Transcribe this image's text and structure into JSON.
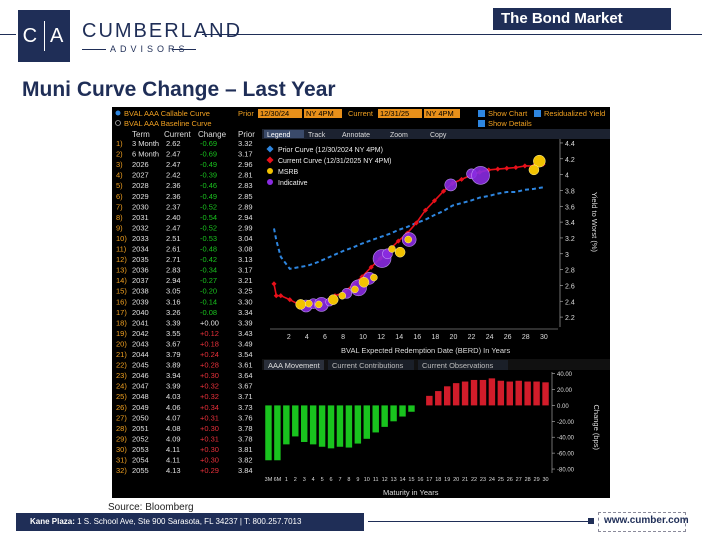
{
  "header": {
    "logo_letters": "C|A",
    "brand_name": "CUMBERLAND",
    "brand_sub": "ADVISORS",
    "banner": "The Bond Market",
    "title": "Muni Curve Change – Last Year"
  },
  "terminal": {
    "toolbar": {
      "row1_left": "BVAL AAA Callable Curve",
      "row2_left": "BVAL AAA Baseline Curve",
      "prior_label": "Prior",
      "prior_date": "12/30/24",
      "prior_time": "NY 4PM",
      "current_label": "Current",
      "current_date": "12/31/25",
      "current_time": "NY 4PM",
      "show_chart": "Show Chart",
      "residualized": "Residualized Yield",
      "show_details": "Show Details"
    },
    "table_headers": [
      "Term",
      "Current",
      "Change",
      "Prior"
    ],
    "tabs_top": [
      "Legend",
      "Track",
      "Annotate",
      "Zoom",
      "Copy"
    ],
    "tabs_bottom": [
      "AAA Movement",
      "Current Contributions",
      "Current Observations"
    ],
    "rows": [
      {
        "n": "1)",
        "term": "3 Month",
        "current": "2.62",
        "change": "-0.69",
        "prior": "3.32"
      },
      {
        "n": "2)",
        "term": "6 Month",
        "current": "2.47",
        "change": "-0.69",
        "prior": "3.17"
      },
      {
        "n": "3)",
        "term": "2026",
        "current": "2.47",
        "change": "-0.49",
        "prior": "2.96"
      },
      {
        "n": "4)",
        "term": "2027",
        "current": "2.42",
        "change": "-0.39",
        "prior": "2.81"
      },
      {
        "n": "5)",
        "term": "2028",
        "current": "2.36",
        "change": "-0.46",
        "prior": "2.83"
      },
      {
        "n": "6)",
        "term": "2029",
        "current": "2.36",
        "change": "-0.49",
        "prior": "2.85"
      },
      {
        "n": "7)",
        "term": "2030",
        "current": "2.37",
        "change": "-0.52",
        "prior": "2.89"
      },
      {
        "n": "8)",
        "term": "2031",
        "current": "2.40",
        "change": "-0.54",
        "prior": "2.94"
      },
      {
        "n": "9)",
        "term": "2032",
        "current": "2.47",
        "change": "-0.52",
        "prior": "2.99"
      },
      {
        "n": "10)",
        "term": "2033",
        "current": "2.51",
        "change": "-0.53",
        "prior": "3.04"
      },
      {
        "n": "11)",
        "term": "2034",
        "current": "2.61",
        "change": "-0.48",
        "prior": "3.08"
      },
      {
        "n": "12)",
        "term": "2035",
        "current": "2.71",
        "change": "-0.42",
        "prior": "3.13"
      },
      {
        "n": "13)",
        "term": "2036",
        "current": "2.83",
        "change": "-0.34",
        "prior": "3.17"
      },
      {
        "n": "14)",
        "term": "2037",
        "current": "2.94",
        "change": "-0.27",
        "prior": "3.21"
      },
      {
        "n": "15)",
        "term": "2038",
        "current": "3.05",
        "change": "-0.20",
        "prior": "3.25"
      },
      {
        "n": "16)",
        "term": "2039",
        "current": "3.16",
        "change": "-0.14",
        "prior": "3.30"
      },
      {
        "n": "17)",
        "term": "2040",
        "current": "3.26",
        "change": "-0.08",
        "prior": "3.34"
      },
      {
        "n": "18)",
        "term": "2041",
        "current": "3.39",
        "change": "+0.00",
        "prior": "3.39"
      },
      {
        "n": "19)",
        "term": "2042",
        "current": "3.55",
        "change": "+0.12",
        "prior": "3.43"
      },
      {
        "n": "20)",
        "term": "2043",
        "current": "3.67",
        "change": "+0.18",
        "prior": "3.49"
      },
      {
        "n": "21)",
        "term": "2044",
        "current": "3.79",
        "change": "+0.24",
        "prior": "3.54"
      },
      {
        "n": "22)",
        "term": "2045",
        "current": "3.89",
        "change": "+0.28",
        "prior": "3.61"
      },
      {
        "n": "23)",
        "term": "2046",
        "current": "3.94",
        "change": "+0.30",
        "prior": "3.64"
      },
      {
        "n": "24)",
        "term": "2047",
        "current": "3.99",
        "change": "+0.32",
        "prior": "3.67"
      },
      {
        "n": "25)",
        "term": "2048",
        "current": "4.03",
        "change": "+0.32",
        "prior": "3.71"
      },
      {
        "n": "26)",
        "term": "2049",
        "current": "4.06",
        "change": "+0.34",
        "prior": "3.73"
      },
      {
        "n": "27)",
        "term": "2050",
        "current": "4.07",
        "change": "+0.31",
        "prior": "3.76"
      },
      {
        "n": "28)",
        "term": "2051",
        "current": "4.08",
        "change": "+0.30",
        "prior": "3.78"
      },
      {
        "n": "29)",
        "term": "2052",
        "current": "4.09",
        "change": "+0.31",
        "prior": "3.78"
      },
      {
        "n": "30)",
        "term": "2053",
        "current": "4.11",
        "change": "+0.30",
        "prior": "3.81"
      },
      {
        "n": "31)",
        "term": "2054",
        "current": "4.11",
        "change": "+0.30",
        "prior": "3.82"
      },
      {
        "n": "32)",
        "term": "2055",
        "current": "4.13",
        "change": "+0.29",
        "prior": "3.84"
      }
    ]
  },
  "chart_data": [
    {
      "type": "line",
      "legend": [
        "Prior Curve (12/30/2024 NY 4PM)",
        "Current Curve (12/31/2025 NY 4PM)",
        "MSRB",
        "Indicative"
      ],
      "xlabel": "BVAL Expected Redemption Date (BERD) In Years",
      "ylabel": "Yield to Worst (%)",
      "x_ticks": [
        2,
        4,
        6,
        8,
        10,
        12,
        14,
        16,
        18,
        20,
        22,
        24,
        26,
        28,
        30
      ],
      "y_ticks": [
        2.2,
        2.4,
        2.6,
        2.8,
        3,
        3.2,
        3.4,
        3.6,
        3.8,
        4,
        4.2,
        4.4
      ],
      "xlim": [
        0.25,
        31
      ],
      "ylim": [
        2.1,
        4.45
      ],
      "x": [
        0.25,
        0.5,
        1,
        2,
        3,
        4,
        5,
        6,
        7,
        8,
        9,
        10,
        11,
        12,
        13,
        14,
        15,
        16,
        17,
        18,
        19,
        20,
        21,
        22,
        23,
        24,
        25,
        26,
        27,
        28,
        29,
        30
      ],
      "series": [
        {
          "name": "Prior Curve (12/30/2024 NY 4PM)",
          "color": "#2e86e0",
          "style": "dashed",
          "values": [
            3.32,
            3.17,
            2.96,
            2.81,
            2.83,
            2.85,
            2.89,
            2.94,
            2.99,
            3.04,
            3.08,
            3.13,
            3.17,
            3.21,
            3.25,
            3.3,
            3.34,
            3.39,
            3.43,
            3.49,
            3.54,
            3.61,
            3.64,
            3.67,
            3.71,
            3.73,
            3.76,
            3.78,
            3.78,
            3.81,
            3.82,
            3.84
          ]
        },
        {
          "name": "Current Curve (12/31/2025 NY 4PM)",
          "color": "#e8101a",
          "style": "solid",
          "values": [
            2.62,
            2.47,
            2.47,
            2.42,
            2.36,
            2.36,
            2.37,
            2.4,
            2.47,
            2.51,
            2.61,
            2.71,
            2.83,
            2.94,
            3.05,
            3.16,
            3.26,
            3.39,
            3.55,
            3.67,
            3.79,
            3.89,
            3.94,
            3.99,
            4.03,
            4.06,
            4.07,
            4.08,
            4.09,
            4.11,
            4.11,
            4.13
          ]
        }
      ],
      "msrb_points": [
        [
          3.2,
          2.36
        ],
        [
          4.1,
          2.37
        ],
        [
          5.2,
          2.36
        ],
        [
          6.8,
          2.42
        ],
        [
          7.8,
          2.47
        ],
        [
          9.2,
          2.55
        ],
        [
          10.2,
          2.64
        ],
        [
          11.3,
          2.7
        ],
        [
          13.3,
          3.06
        ],
        [
          14.2,
          3.02
        ],
        [
          15.1,
          3.18
        ],
        [
          29.6,
          4.17
        ],
        [
          29.0,
          4.06
        ]
      ],
      "indicative_points": [
        [
          3.8,
          2.34
        ],
        [
          4.6,
          2.37
        ],
        [
          5.5,
          2.36
        ],
        [
          6.4,
          2.39
        ],
        [
          8.3,
          2.5
        ],
        [
          9.6,
          2.57
        ],
        [
          10.8,
          2.69
        ],
        [
          12.2,
          2.94
        ],
        [
          12.8,
          3.0
        ],
        [
          15.2,
          3.18
        ],
        [
          19.8,
          3.87
        ],
        [
          22.1,
          4.01
        ],
        [
          23.1,
          3.99
        ]
      ]
    },
    {
      "type": "bar",
      "title": "AAA Movement",
      "xlabel": "Maturity in Years",
      "ylabel": "Change (bps)",
      "categories": [
        "3M",
        "6M",
        "1",
        "2",
        "3",
        "4",
        "5",
        "6",
        "7",
        "8",
        "9",
        "10",
        "11",
        "12",
        "13",
        "14",
        "15",
        "16",
        "17",
        "18",
        "19",
        "20",
        "21",
        "22",
        "23",
        "24",
        "25",
        "26",
        "27",
        "28",
        "29",
        "30"
      ],
      "values": [
        -69,
        -69,
        -49,
        -39,
        -46,
        -49,
        -52,
        -54,
        -52,
        -53,
        -48,
        -42,
        -34,
        -27,
        -20,
        -14,
        -8,
        0,
        12,
        18,
        24,
        28,
        30,
        32,
        32,
        34,
        31,
        30,
        31,
        30,
        30,
        29
      ],
      "y_ticks": [
        40,
        20,
        0,
        -20,
        -40,
        -60,
        -80
      ],
      "ylim": [
        -85,
        42
      ],
      "neg_color": "#19c31e",
      "pos_color": "#d21c2a"
    }
  ],
  "footer": {
    "source": "Source: Bloomberg",
    "address_bold": "Kane Plaza:",
    "address": " 1 S. School Ave, Ste 900  Sarasota, FL 34237   |   T: 800.257.7013",
    "url": "www.cumber.com"
  }
}
